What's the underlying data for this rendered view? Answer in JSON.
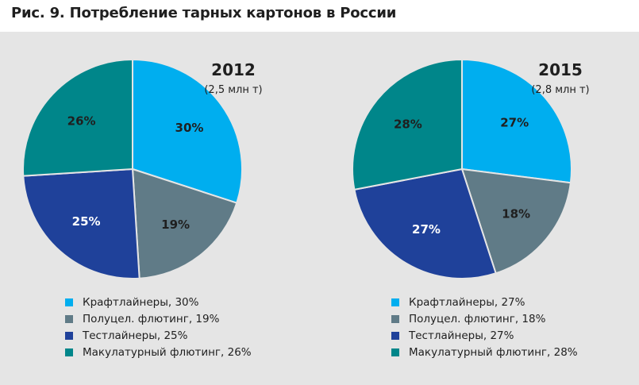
{
  "title": "Рис. 9. Потребление тарных картонов в России",
  "colors": {
    "kraftliner": "#00aeef",
    "semichem_fluting": "#607b87",
    "testliner": "#1f419a",
    "recycled_fluting": "#00868a",
    "panel_bg": "#e5e5e5"
  },
  "chart_data": [
    {
      "type": "pie",
      "title": "2012",
      "subtitle": "(2,5 млн т)",
      "slices": [
        {
          "name": "Крафтлайнеры",
          "value": 30,
          "label": "30%",
          "legend": "Крафтлайнеры, 30%",
          "color": "#00aeef"
        },
        {
          "name": "Полуцел. флютинг",
          "value": 19,
          "label": "19%",
          "legend": "Полуцел. флютинг, 19%",
          "color": "#607b87"
        },
        {
          "name": "Тестлайнеры",
          "value": 25,
          "label": "25%",
          "legend": "Тестлайнеры, 25%",
          "color": "#1f419a"
        },
        {
          "name": "Макулатурный флютинг",
          "value": 26,
          "label": "26%",
          "legend": "Макулатурный флютинг, 26%",
          "color": "#00868a"
        }
      ]
    },
    {
      "type": "pie",
      "title": "2015",
      "subtitle": "(2,8 млн т)",
      "slices": [
        {
          "name": "Крафтлайнеры",
          "value": 27,
          "label": "27%",
          "legend": "Крафтлайнеры, 27%",
          "color": "#00aeef"
        },
        {
          "name": "Полуцел. флютинг",
          "value": 18,
          "label": "18%",
          "legend": "Полуцел. флютинг, 18%",
          "color": "#607b87"
        },
        {
          "name": "Тестлайнеры",
          "value": 27,
          "label": "27%",
          "legend": "Тестлайнеры, 27%",
          "color": "#1f419a"
        },
        {
          "name": "Макулатурный флютинг",
          "value": 28,
          "label": "28%",
          "legend": "Макулатурный флютинг, 28%",
          "color": "#00868a"
        }
      ]
    }
  ]
}
